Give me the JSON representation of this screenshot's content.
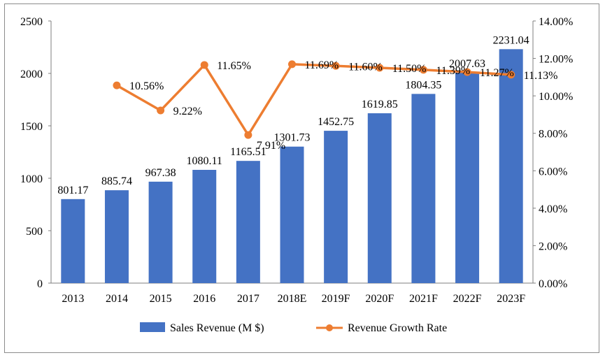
{
  "chart_data": {
    "type": "bar+line",
    "categories": [
      "2013",
      "2014",
      "2015",
      "2016",
      "2017",
      "2018E",
      "2019F",
      "2020F",
      "2021F",
      "2022F",
      "2023F"
    ],
    "series": [
      {
        "name": "Sales Revenue (M $)",
        "type": "bar",
        "axis": "left",
        "color": "#4472C4",
        "values": [
          801.17,
          885.74,
          967.38,
          1080.11,
          1165.51,
          1301.73,
          1452.75,
          1619.85,
          1804.35,
          2007.63,
          2231.04
        ],
        "labels": [
          "801.17",
          "885.74",
          "967.38",
          "1080.11",
          "1165.51",
          "1301.73",
          "1452.75",
          "1619.85",
          "1804.35",
          "2007.63",
          "2231.04"
        ]
      },
      {
        "name": "Revenue Growth Rate",
        "type": "line",
        "axis": "right",
        "color": "#ED7D31",
        "values": [
          null,
          10.56,
          9.22,
          11.65,
          7.91,
          11.69,
          11.6,
          11.5,
          11.39,
          11.27,
          11.13
        ],
        "labels": [
          null,
          "10.56%",
          "9.22%",
          "11.65%",
          "7.91%",
          "11.69%",
          "11.60%",
          "11.50%",
          "11.39%",
          "11.27%",
          "11.13%"
        ]
      }
    ],
    "y_left": {
      "min": 0,
      "max": 2500,
      "ticks": [
        "0",
        "500",
        "1000",
        "1500",
        "2000",
        "2500"
      ]
    },
    "y_right": {
      "min": 0,
      "max": 14,
      "ticks": [
        "0.00%",
        "2.00%",
        "4.00%",
        "6.00%",
        "8.00%",
        "10.00%",
        "12.00%",
        "14.00%"
      ]
    },
    "grid": false,
    "legend": "bottom"
  }
}
